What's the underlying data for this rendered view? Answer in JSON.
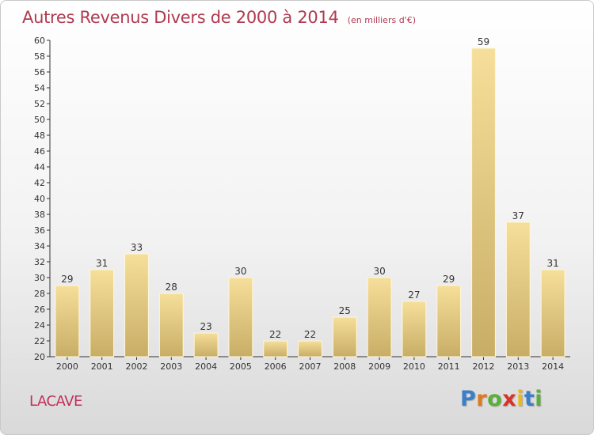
{
  "header": {
    "title": "Autres Revenus Divers de 2000 à 2014",
    "subtitle": "(en milliers d'€)"
  },
  "footer": {
    "place": "LACAVE",
    "logo_letters": [
      "P",
      "r",
      "o",
      "x",
      "i",
      "t",
      "i"
    ],
    "logo_colors": [
      "#3a7fc8",
      "#e07a1e",
      "#5aae3a",
      "#d8322a",
      "#e8b81e",
      "#3a7fc8",
      "#5aae3a"
    ]
  },
  "colors": {
    "bar_top": "#f6df9a",
    "bar_bottom": "#c8ad66",
    "bar_edge": "#fff6d8",
    "title": "#b03a50",
    "axis": "#333333",
    "grid": "#dddddd"
  },
  "chart_data": {
    "type": "bar",
    "title": "Autres Revenus Divers de 2000 à 2014",
    "subtitle": "(en milliers d'€)",
    "categories": [
      "2000",
      "2001",
      "2002",
      "2003",
      "2004",
      "2005",
      "2006",
      "2007",
      "2008",
      "2009",
      "2010",
      "2011",
      "2012",
      "2013",
      "2014"
    ],
    "values": [
      29,
      31,
      33,
      28,
      23,
      30,
      22,
      22,
      25,
      30,
      27,
      29,
      59,
      37,
      31
    ],
    "ylim": [
      20,
      60
    ],
    "ytick_step": 2,
    "data_labels": true,
    "grid": false,
    "legend": "none"
  }
}
